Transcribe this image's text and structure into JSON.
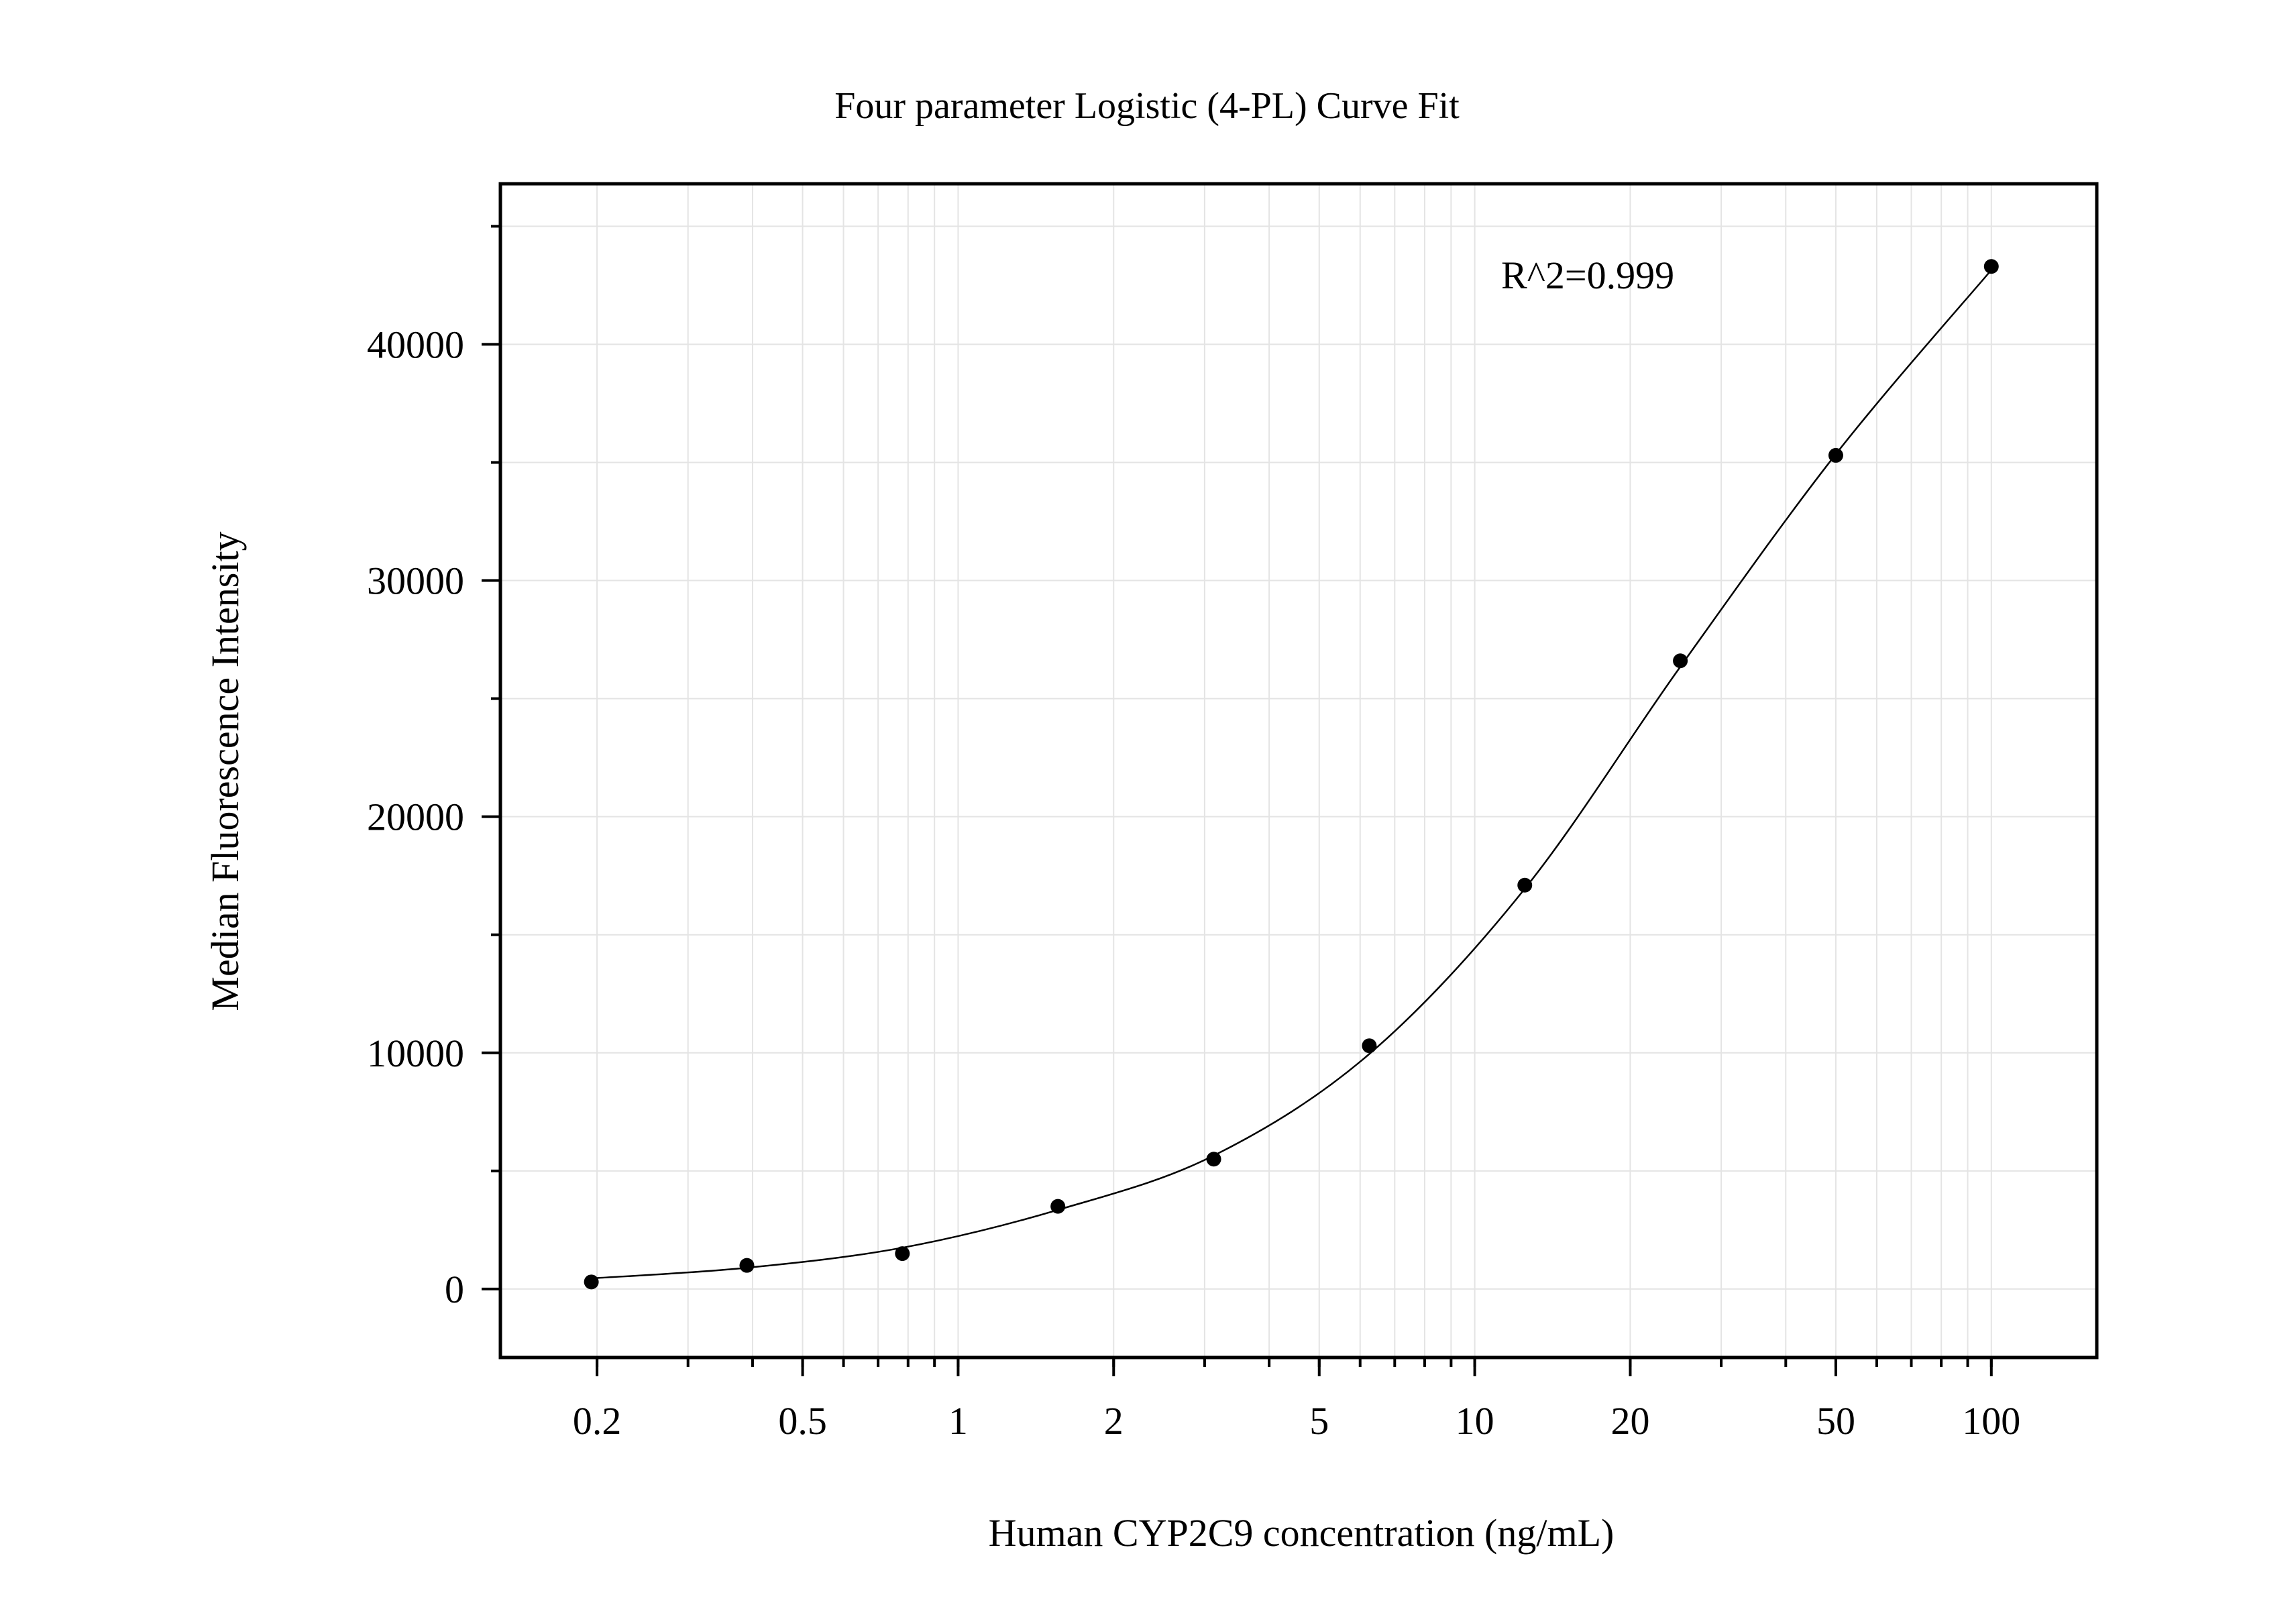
{
  "chart_data": {
    "type": "scatter",
    "title": "Four parameter Logistic (4-PL) Curve Fit",
    "xlabel": "Human CYP2C9 concentration (ng/mL)",
    "ylabel": "Median Fluorescence Intensity",
    "x_scale": "log",
    "xlim": [
      0.13,
      160
    ],
    "ylim": [
      -2900,
      46800
    ],
    "grid": true,
    "annotation": "R^2=0.999",
    "x_ticks": [
      {
        "value": 0.2,
        "label": "0.2"
      },
      {
        "value": 0.5,
        "label": "0.5"
      },
      {
        "value": 1,
        "label": "1"
      },
      {
        "value": 2,
        "label": "2"
      },
      {
        "value": 5,
        "label": "5"
      },
      {
        "value": 10,
        "label": "10"
      },
      {
        "value": 20,
        "label": "20"
      },
      {
        "value": 50,
        "label": "50"
      },
      {
        "value": 100,
        "label": "100"
      }
    ],
    "y_ticks": [
      {
        "value": 0,
        "label": "0"
      },
      {
        "value": 10000,
        "label": "10000"
      },
      {
        "value": 20000,
        "label": "20000"
      },
      {
        "value": 30000,
        "label": "30000"
      },
      {
        "value": 40000,
        "label": "40000"
      }
    ],
    "series": [
      {
        "kind": "points",
        "x": [
          0.195,
          0.39,
          0.78,
          1.56,
          3.125,
          6.25,
          12.5,
          25,
          50,
          100
        ],
        "y": [
          300,
          1000,
          1500,
          3500,
          5500,
          10300,
          17100,
          26600,
          35300,
          43300
        ],
        "color": "#000000"
      },
      {
        "kind": "fit",
        "model": "4PL",
        "x": [
          0.195,
          0.39,
          0.78,
          1.56,
          3.125,
          6.25,
          12.5,
          25,
          50,
          100
        ],
        "y": [
          450,
          900,
          1750,
          3350,
          5650,
          9950,
          16950,
          26350,
          35350,
          43150
        ],
        "color": "#000000"
      }
    ]
  }
}
